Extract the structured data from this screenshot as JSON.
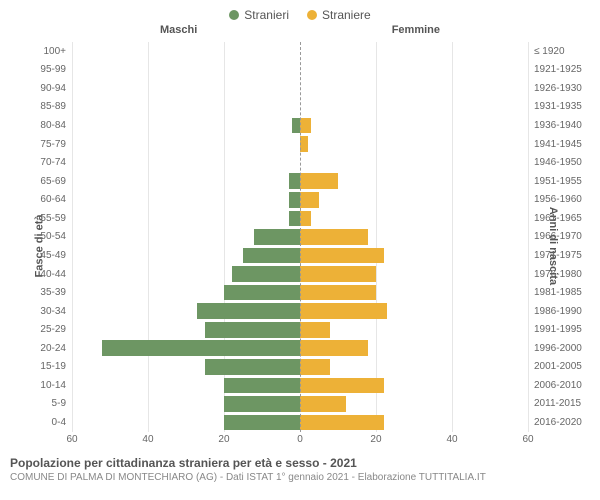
{
  "legend": {
    "male": {
      "label": "Stranieri",
      "color": "#6d9663"
    },
    "female": {
      "label": "Straniere",
      "color": "#edb137"
    }
  },
  "headers": {
    "left": "Maschi",
    "right": "Femmine"
  },
  "axis_titles": {
    "left": "Fasce di età",
    "right": "Anni di nascita"
  },
  "chart": {
    "type": "population-pyramid",
    "background_color": "#ffffff",
    "grid_color": "#e6e6e6",
    "xlim": 60,
    "xticks_left": [
      60,
      40,
      20,
      0
    ],
    "xticks_right": [
      0,
      20,
      40,
      60
    ],
    "age_labels": [
      "100+",
      "95-99",
      "90-94",
      "85-89",
      "80-84",
      "75-79",
      "70-74",
      "65-69",
      "60-64",
      "55-59",
      "50-54",
      "45-49",
      "40-44",
      "35-39",
      "30-34",
      "25-29",
      "20-24",
      "15-19",
      "10-14",
      "5-9",
      "0-4"
    ],
    "birth_labels": [
      "≤ 1920",
      "1921-1925",
      "1926-1930",
      "1931-1935",
      "1936-1940",
      "1941-1945",
      "1946-1950",
      "1951-1955",
      "1956-1960",
      "1961-1965",
      "1966-1970",
      "1971-1975",
      "1976-1980",
      "1981-1985",
      "1986-1990",
      "1991-1995",
      "1996-2000",
      "2001-2005",
      "2006-2010",
      "2011-2015",
      "2016-2020"
    ],
    "male_values": [
      0,
      0,
      0,
      0,
      2,
      0,
      0,
      3,
      3,
      3,
      12,
      15,
      18,
      20,
      27,
      25,
      52,
      25,
      20,
      20,
      20
    ],
    "female_values": [
      0,
      0,
      0,
      0,
      3,
      2,
      0,
      10,
      5,
      3,
      18,
      22,
      20,
      20,
      23,
      8,
      18,
      8,
      22,
      12,
      22
    ]
  },
  "footer": {
    "title": "Popolazione per cittadinanza straniera per età e sesso - 2021",
    "subtitle": "COMUNE DI PALMA DI MONTECHIARO (AG) - Dati ISTAT 1° gennaio 2021 - Elaborazione TUTTITALIA.IT"
  }
}
